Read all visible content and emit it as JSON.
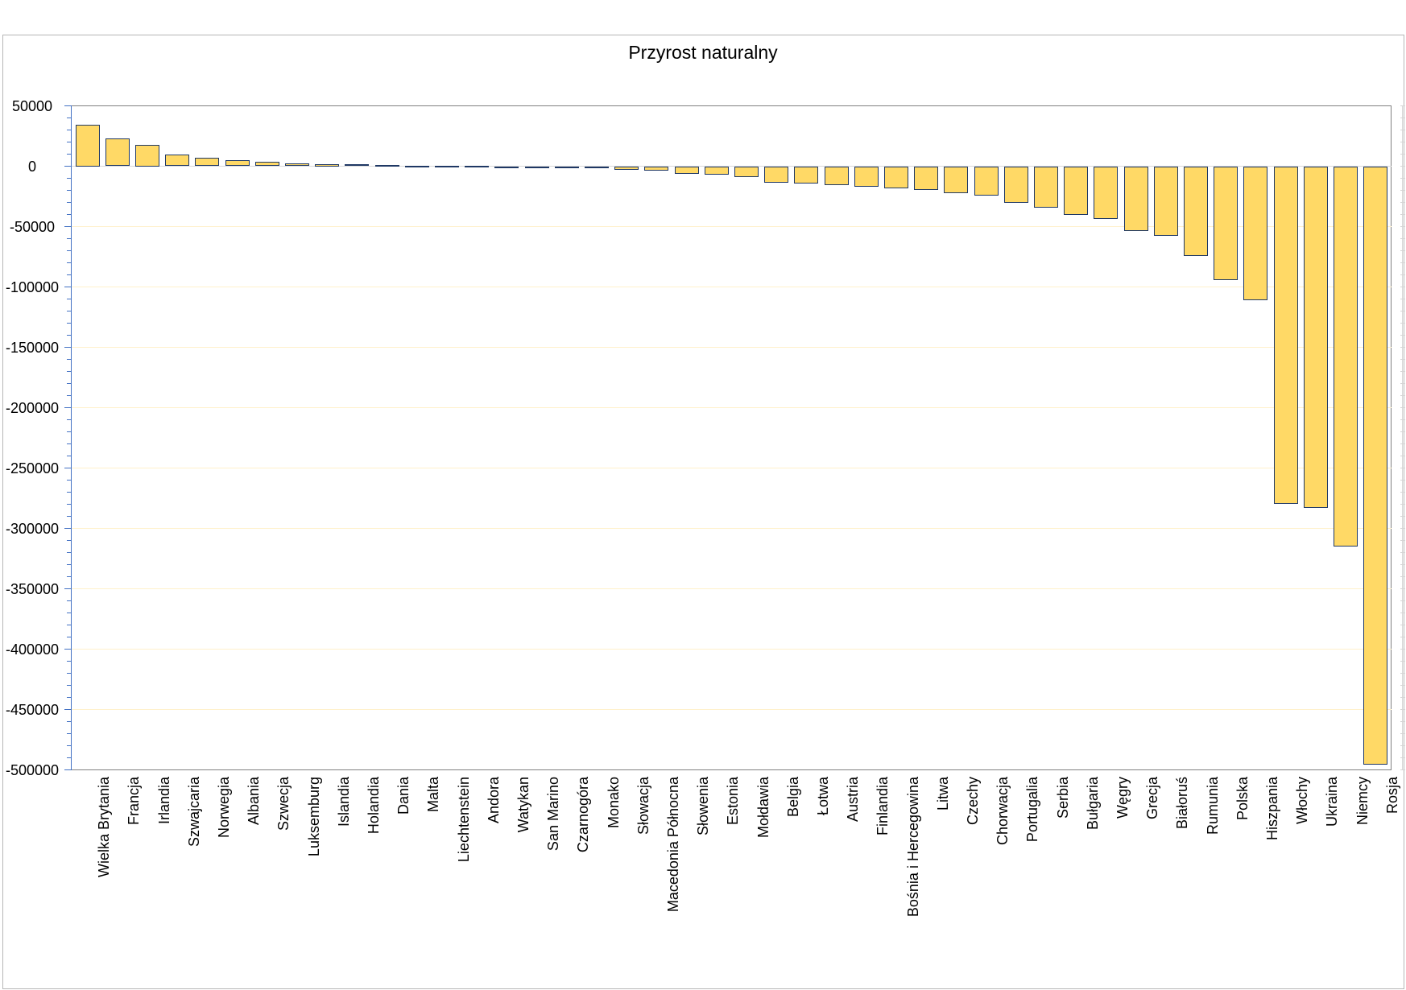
{
  "title": "Przyrost naturalny",
  "colors": {
    "background": "#ffffff",
    "frame_border": "#b6b6b6",
    "plot_border": "#808080",
    "bar_fill": "#FFD966",
    "bar_border": "#1F3864",
    "axis_blue": "#4472C4",
    "gridline_major": "#FFF1CC",
    "zero_line": "#D9D9D9",
    "right_axis": "#D5D5D5",
    "text": "#000000"
  },
  "chart_data": {
    "type": "bar",
    "title": "Przyrost naturalny",
    "xlabel": "",
    "ylabel": "",
    "ylim": [
      -500000,
      50000
    ],
    "y_major_tick": 50000,
    "y_minor_tick": 10000,
    "grid": "major-horizontal",
    "legend": "none",
    "y_tick_labels": [
      "50000",
      "0",
      "-50000",
      "-100000",
      "-150000",
      "-200000",
      "-250000",
      "-300000",
      "-350000",
      "-400000",
      "-450000",
      "-500000"
    ],
    "categories": [
      "Wielka Brytania",
      "Francja",
      "Irlandia",
      "Szwajcaria",
      "Norwegia",
      "Albania",
      "Szwecja",
      "Luksemburg",
      "Islandia",
      "Holandia",
      "Dania",
      "Malta",
      "Liechtenstein",
      "Andora",
      "Watykan",
      "San Marino",
      "Czarnogóra",
      "Monako",
      "Słowacja",
      "Macedonia Północna",
      "Słowenia",
      "Estonia",
      "Mołdawia",
      "Belgia",
      "Łotwa",
      "Austria",
      "Finlandia",
      "Bośnia i Hercegowina",
      "Litwa",
      "Czechy",
      "Chorwacja",
      "Portugalia",
      "Serbia",
      "Bułgaria",
      "Węgry",
      "Grecja",
      "Białoruś",
      "Rumunia",
      "Polska",
      "Hiszpania",
      "Włochy",
      "Ukraina",
      "Niemcy",
      "Rosja"
    ],
    "values": [
      34500,
      22700,
      17500,
      9800,
      7200,
      5200,
      3800,
      2400,
      2000,
      1400,
      900,
      600,
      350,
      150,
      -150,
      -350,
      -600,
      -900,
      -2900,
      -3800,
      -6200,
      -7000,
      -8800,
      -13500,
      -14200,
      -15800,
      -17100,
      -18300,
      -19500,
      -22500,
      -24500,
      -30500,
      -34500,
      -40500,
      -43700,
      -53700,
      -57700,
      -74300,
      -94300,
      -111000,
      -279700,
      -283200,
      -315200,
      -495800
    ]
  }
}
